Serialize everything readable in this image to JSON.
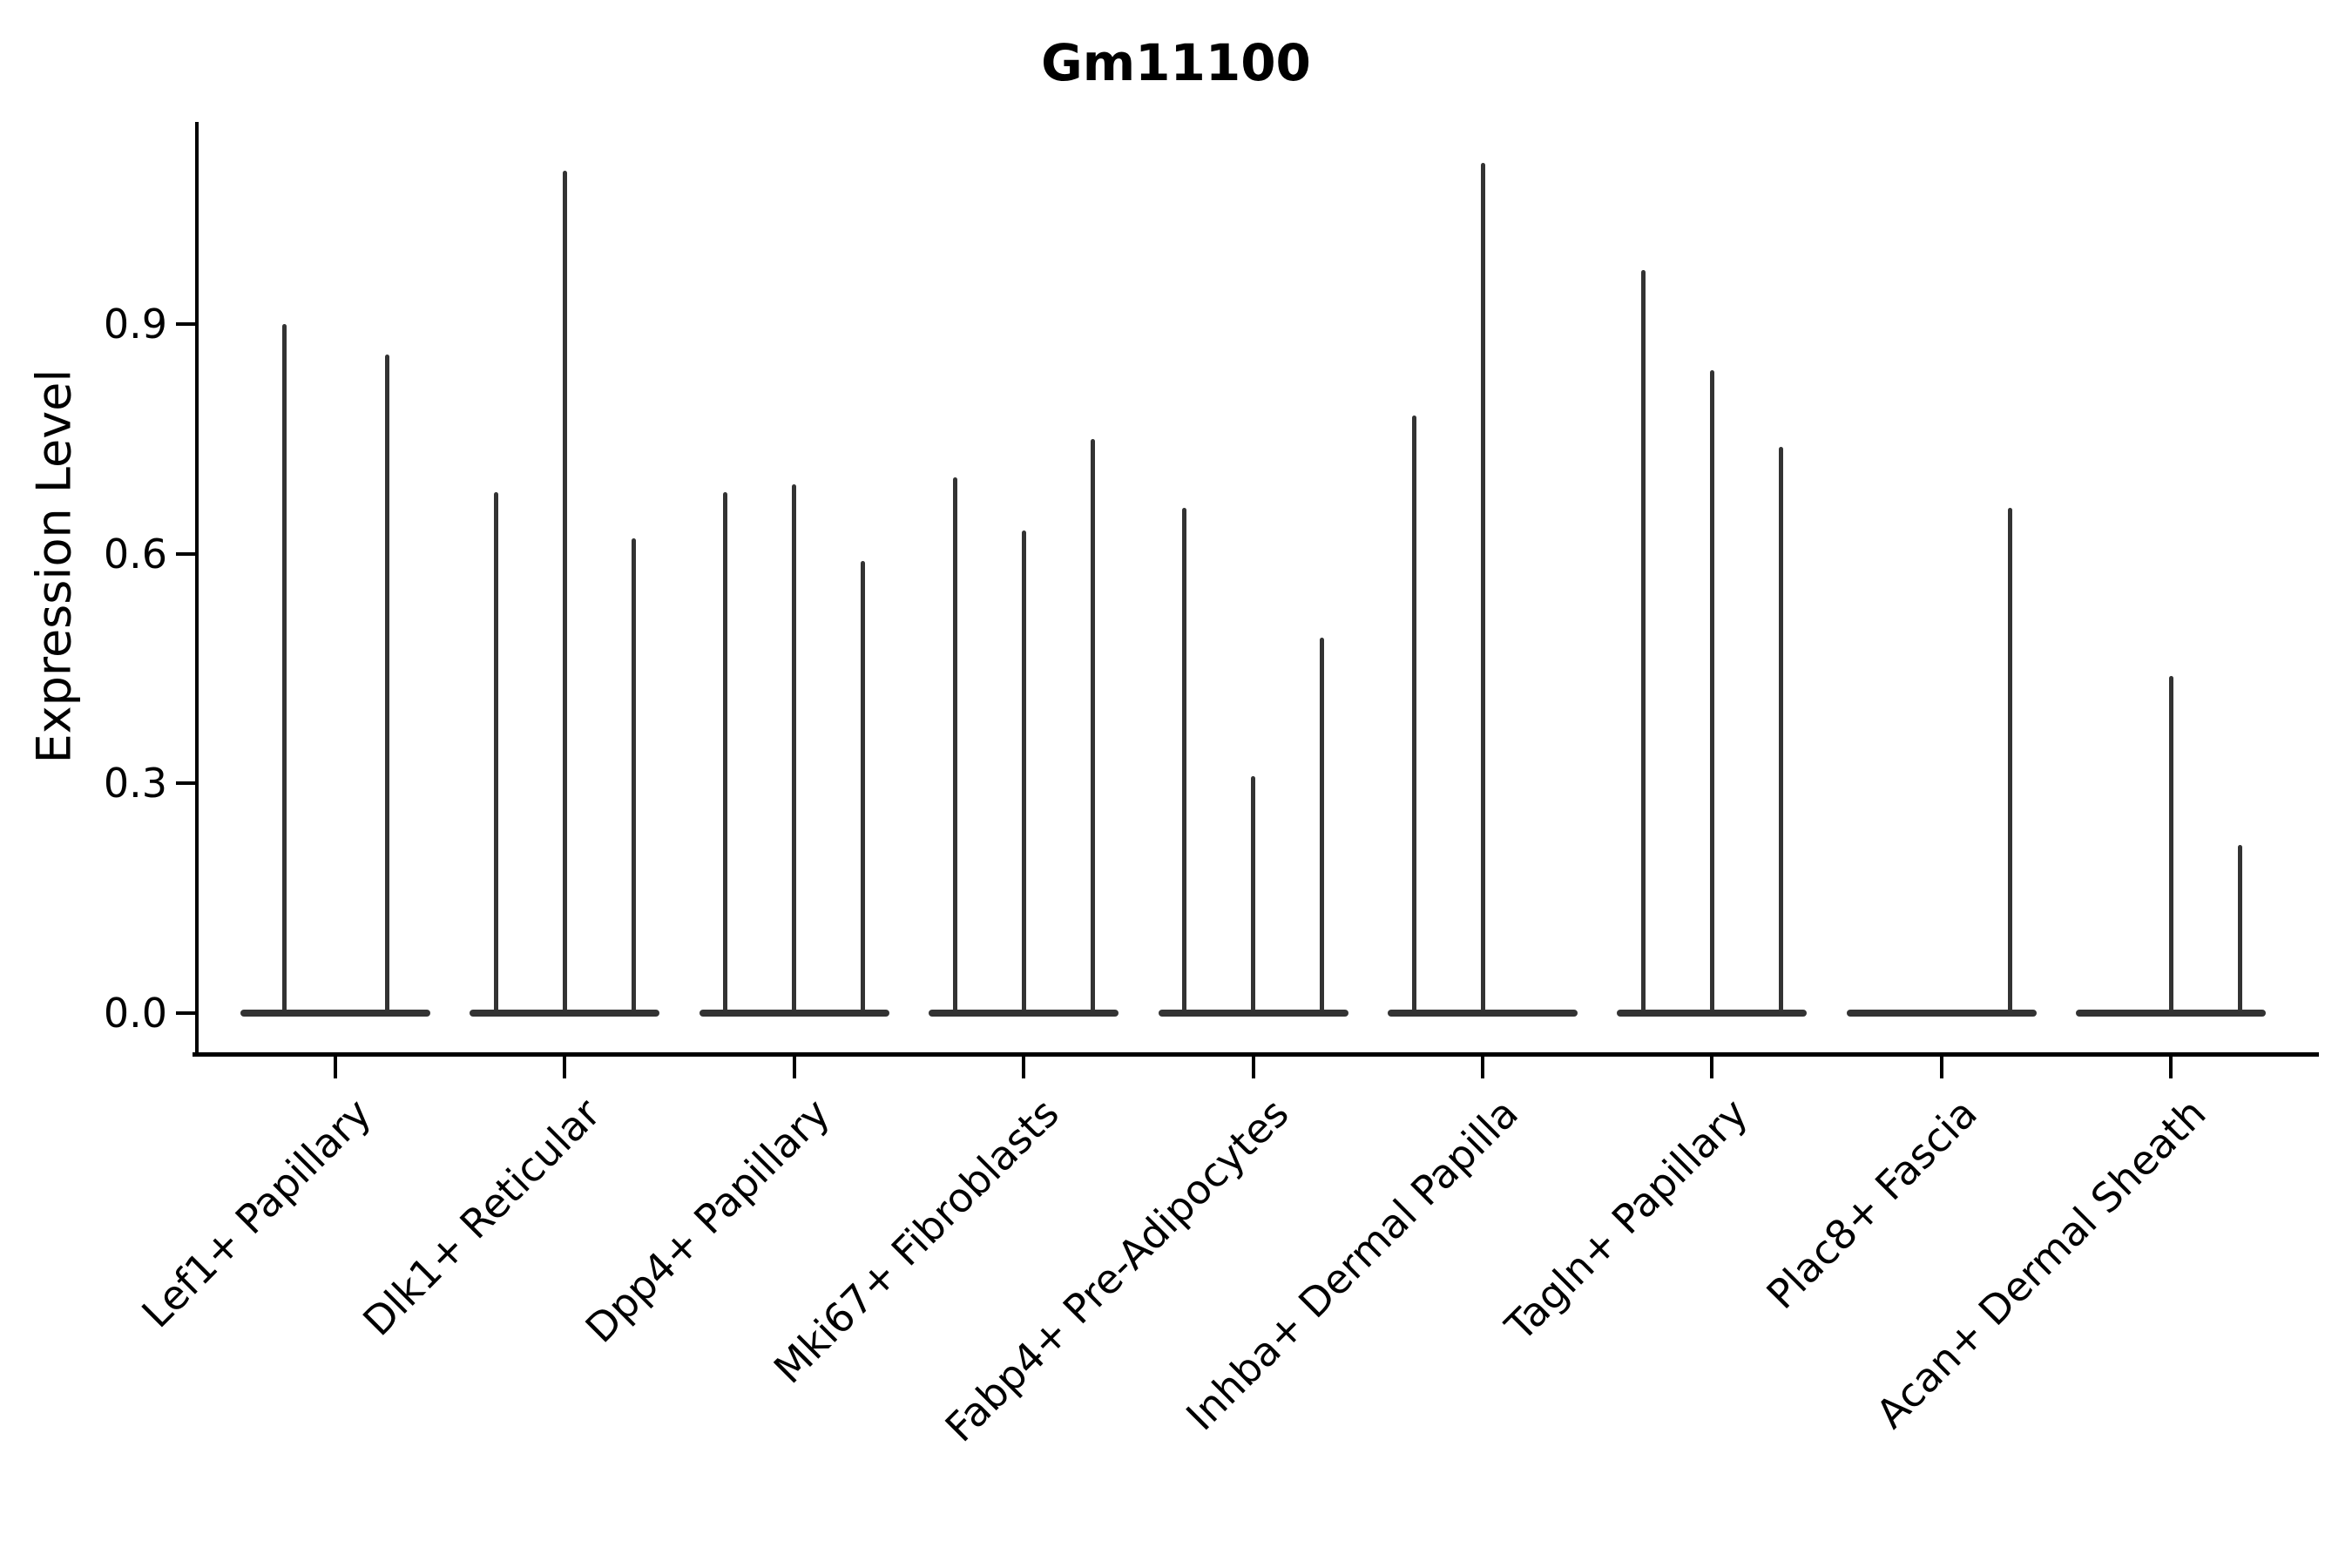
{
  "chart_data": {
    "type": "violin",
    "title": "Gm11100",
    "xlabel": "",
    "ylabel": "Expression Level",
    "yticks": [
      0.0,
      0.3,
      0.6,
      0.9
    ],
    "ytick_labels": [
      "0.0",
      "0.3",
      "0.6",
      "0.9"
    ],
    "ylim": [
      0.0,
      1.16
    ],
    "grid": "off",
    "legend": "none",
    "categories": [
      "Lef1+ Papillary",
      "Dlk1+ Reticular",
      "Dpp4+ Papillary",
      "Mki67+ Fibroblasts",
      "Fabp4+ Pre-Adipocytes",
      "Inhba+ Dermal Papilla",
      "Tagln+ Papillary",
      "Plac8+ Fascia",
      "Acan+ Dermal Sheath"
    ],
    "violins": [
      {
        "category": "Lef1+ Papillary",
        "spikes": [
          {
            "offset": -59,
            "max": 0.9
          },
          {
            "offset": 59,
            "max": 0.86
          }
        ]
      },
      {
        "category": "Dlk1+ Reticular",
        "spikes": [
          {
            "offset": -79,
            "max": 0.68
          },
          {
            "offset": 0,
            "max": 1.1
          },
          {
            "offset": 79,
            "max": 0.62
          }
        ]
      },
      {
        "category": "Dpp4+ Papillary",
        "spikes": [
          {
            "offset": -79,
            "max": 0.68
          },
          {
            "offset": 0,
            "max": 0.69
          },
          {
            "offset": 79,
            "max": 0.59
          }
        ]
      },
      {
        "category": "Mki67+ Fibroblasts",
        "spikes": [
          {
            "offset": -79,
            "max": 0.7
          },
          {
            "offset": 0,
            "max": 0.63
          },
          {
            "offset": 79,
            "max": 0.75
          }
        ]
      },
      {
        "category": "Fabp4+ Pre-Adipocytes",
        "spikes": [
          {
            "offset": -79,
            "max": 0.66
          },
          {
            "offset": 0,
            "max": 0.31
          },
          {
            "offset": 79,
            "max": 0.49
          }
        ]
      },
      {
        "category": "Inhba+ Dermal Papilla",
        "spikes": [
          {
            "offset": -79,
            "max": 0.78
          },
          {
            "offset": 0,
            "max": 1.11
          }
        ]
      },
      {
        "category": "Tagln+ Papillary",
        "spikes": [
          {
            "offset": -79,
            "max": 0.97
          },
          {
            "offset": 0,
            "max": 0.84
          },
          {
            "offset": 79,
            "max": 0.74
          }
        ]
      },
      {
        "category": "Plac8+ Fascia",
        "spikes": [
          {
            "offset": 79,
            "max": 0.66
          }
        ]
      },
      {
        "category": "Acan+ Dermal Sheath",
        "spikes": [
          {
            "offset": 0,
            "max": 0.44
          },
          {
            "offset": 79,
            "max": 0.22
          }
        ]
      }
    ],
    "style": {
      "violin_color": "#333333",
      "axis_color": "#000000",
      "background": "#ffffff"
    }
  }
}
